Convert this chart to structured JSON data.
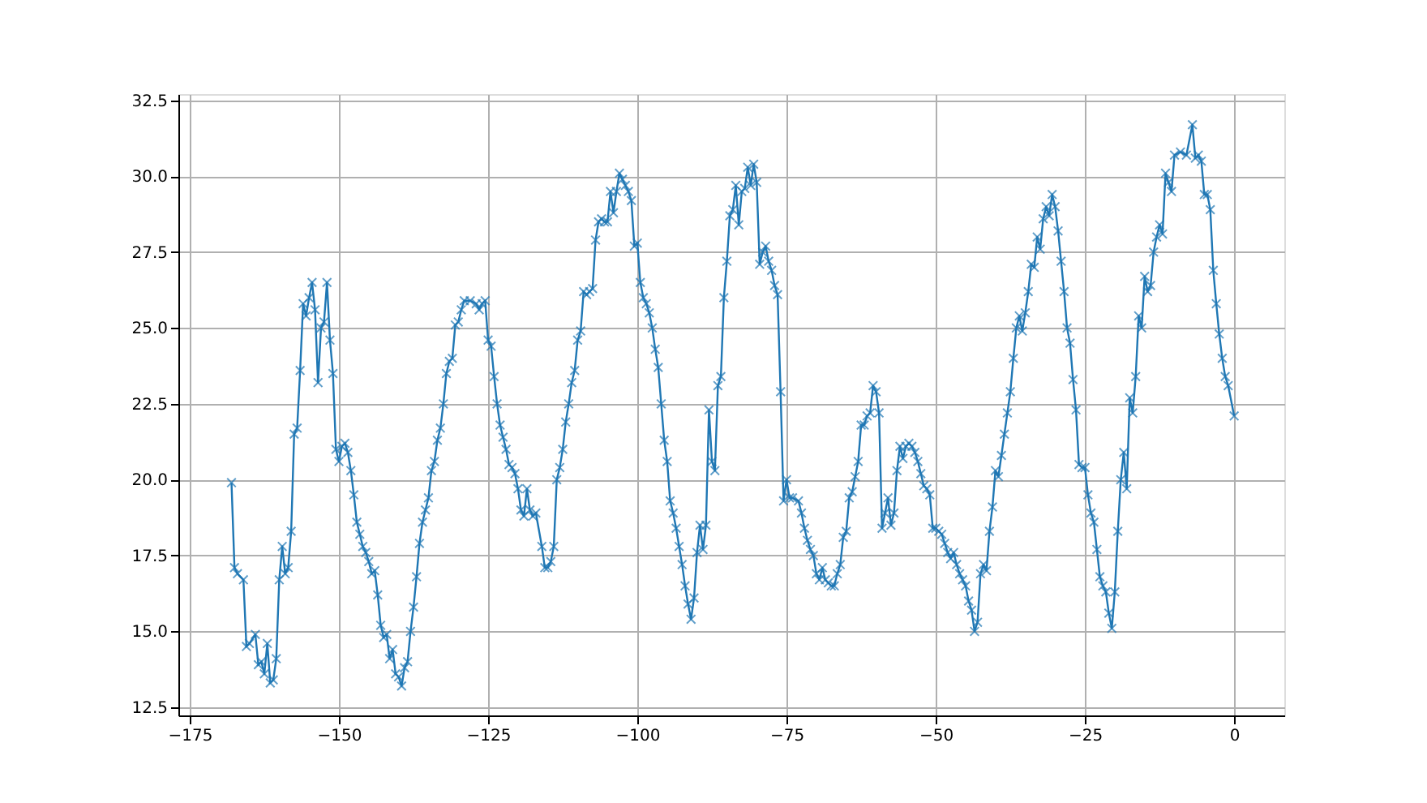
{
  "chart_data": {
    "type": "line",
    "marker": "cross",
    "line_style": "solid",
    "grid": true,
    "xlim": [
      -176.9,
      8.4
    ],
    "ylim": [
      12.23,
      32.71
    ],
    "xticks": [
      {
        "value": -175,
        "label": "−175"
      },
      {
        "value": -150,
        "label": "−150"
      },
      {
        "value": -125,
        "label": "−125"
      },
      {
        "value": -100,
        "label": "−100"
      },
      {
        "value": -75,
        "label": "−75"
      },
      {
        "value": -50,
        "label": "−50"
      },
      {
        "value": -25,
        "label": "−25"
      },
      0
    ],
    "yticks": [
      12.5,
      {
        "value": 15,
        "label": "15.0"
      },
      17.5,
      {
        "value": 20,
        "label": "20.0"
      },
      22.5,
      {
        "value": 25,
        "label": "25.0"
      },
      27.5,
      {
        "value": 30,
        "label": "30.0"
      },
      32.5
    ],
    "series": [
      {
        "color": "#1f77b4",
        "x": [
          -168,
          -167.5,
          -167,
          -166,
          -165.5,
          -165,
          -164,
          -163.5,
          -163,
          -162.5,
          -162,
          -161.5,
          -161,
          -160.5,
          -160,
          -159.5,
          -159,
          -158.5,
          -158,
          -157.5,
          -157,
          -156.5,
          -156,
          -155.5,
          -155,
          -154.5,
          -154,
          -153.5,
          -153,
          -152.5,
          -152,
          -151.5,
          -151,
          -150.5,
          -150,
          -149.5,
          -149,
          -148.5,
          -148,
          -147.5,
          -147,
          -146.5,
          -146,
          -145.5,
          -145,
          -144.5,
          -144,
          -143.5,
          -143,
          -142.5,
          -142,
          -141.5,
          -141,
          -140.5,
          -140,
          -139.5,
          -139,
          -138.5,
          -138,
          -137.5,
          -137,
          -136.5,
          -136,
          -135.5,
          -135,
          -134.5,
          -134,
          -133.5,
          -133,
          -132.5,
          -132,
          -131.5,
          -131,
          -130.5,
          -130,
          -129.5,
          -129,
          -128,
          -127,
          -126.5,
          -126,
          -125.5,
          -125,
          -124.5,
          -124,
          -123.5,
          -123,
          -122.5,
          -122,
          -121.5,
          -121,
          -120.5,
          -120,
          -119.5,
          -119,
          -118.5,
          -118,
          -117.5,
          -117,
          -116,
          -115.5,
          -115,
          -114.5,
          -114,
          -113.5,
          -113,
          -112.5,
          -112,
          -111.5,
          -111,
          -110.5,
          -110,
          -109.5,
          -109,
          -108.5,
          -108,
          -107.5,
          -107,
          -106.5,
          -106,
          -105.5,
          -105,
          -104.5,
          -104,
          -103.5,
          -103,
          -102.5,
          -102,
          -101.5,
          -101,
          -100.5,
          -100,
          -99.5,
          -99,
          -98.5,
          -98,
          -97.5,
          -97,
          -96.5,
          -96,
          -95.5,
          -95,
          -94.5,
          -94,
          -93.5,
          -93,
          -92.5,
          -92,
          -91.5,
          -91,
          -90.5,
          -90,
          -89.5,
          -89,
          -88.5,
          -88,
          -87.5,
          -87,
          -86.5,
          -86,
          -85.5,
          -85,
          -84.5,
          -84,
          -83.5,
          -83,
          -82.5,
          -82,
          -81.5,
          -81,
          -80.5,
          -80,
          -79.5,
          -79,
          -78.5,
          -78,
          -77.5,
          -77,
          -76.5,
          -76,
          -75.5,
          -75,
          -74.5,
          -74,
          -73,
          -72.5,
          -72,
          -71.5,
          -71,
          -70.5,
          -70,
          -69.5,
          -69,
          -68.5,
          -68,
          -67.5,
          -67,
          -66.5,
          -66,
          -65.5,
          -65,
          -64.5,
          -64,
          -63.5,
          -63,
          -62.5,
          -62,
          -61.5,
          -61,
          -60.5,
          -60,
          -59.5,
          -59,
          -58.5,
          -58,
          -57.5,
          -57,
          -56.5,
          -56,
          -55.5,
          -55,
          -54.5,
          -54,
          -53.5,
          -53,
          -52.5,
          -52,
          -51.5,
          -51,
          -50.5,
          -50,
          -49.5,
          -49,
          -48.5,
          -48,
          -47.5,
          -47,
          -46.5,
          -46,
          -45.5,
          -45,
          -44.5,
          -44,
          -43.5,
          -43,
          -42.5,
          -42,
          -41.5,
          -41,
          -40.5,
          -40,
          -39.5,
          -39,
          -38.5,
          -38,
          -37.5,
          -37,
          -36.5,
          -36,
          -35.5,
          -35,
          -34.5,
          -34,
          -33.5,
          -33,
          -32.5,
          -32,
          -31.5,
          -31,
          -30.5,
          -30,
          -29.5,
          -29,
          -28.5,
          -28,
          -27.5,
          -27,
          -26.5,
          -26,
          -25.5,
          -25,
          -24.5,
          -24,
          -23.5,
          -23,
          -22.5,
          -22,
          -21.5,
          -21,
          -20.5,
          -20,
          -19.5,
          -19,
          -18.5,
          -18,
          -17.5,
          -17,
          -16.5,
          -16,
          -15.5,
          -15,
          -14.5,
          -14,
          -13.5,
          -13,
          -12.5,
          -12,
          -11.5,
          -11,
          -10.5,
          -10,
          -9,
          -8,
          -7,
          -6.5,
          -6,
          -5.5,
          -5,
          -4.5,
          -4,
          -3.5,
          -3,
          -2.5,
          -2,
          -1.5,
          -1,
          0
        ],
        "values": [
          19.9,
          17.1,
          16.9,
          16.7,
          14.5,
          14.6,
          14.9,
          13.9,
          14.0,
          13.6,
          14.6,
          13.3,
          13.4,
          14.1,
          16.7,
          17.8,
          16.9,
          17.1,
          18.3,
          21.5,
          21.7,
          23.6,
          25.8,
          25.4,
          26.0,
          26.5,
          25.6,
          23.2,
          25.0,
          25.2,
          26.5,
          24.6,
          23.5,
          21.0,
          20.6,
          21.1,
          21.2,
          20.9,
          20.3,
          19.5,
          18.6,
          18.2,
          17.8,
          17.6,
          17.3,
          16.9,
          17.0,
          16.2,
          15.2,
          14.8,
          14.9,
          14.1,
          14.4,
          13.6,
          13.5,
          13.2,
          13.8,
          14.0,
          15.0,
          15.8,
          16.8,
          17.9,
          18.6,
          19.0,
          19.4,
          20.3,
          20.6,
          21.3,
          21.7,
          22.5,
          23.5,
          23.9,
          24.0,
          25.1,
          25.2,
          25.6,
          25.9,
          25.9,
          25.8,
          25.6,
          25.8,
          25.9,
          24.6,
          24.4,
          23.4,
          22.5,
          21.8,
          21.4,
          21.0,
          20.5,
          20.4,
          20.2,
          19.7,
          19.0,
          18.8,
          19.7,
          19.0,
          18.8,
          18.9,
          17.8,
          17.1,
          17.1,
          17.3,
          17.8,
          20.0,
          20.4,
          21.0,
          21.9,
          22.5,
          23.2,
          23.6,
          24.6,
          24.9,
          26.2,
          26.1,
          26.2,
          26.3,
          27.9,
          28.5,
          28.6,
          28.5,
          28.5,
          29.5,
          28.8,
          29.5,
          30.1,
          29.9,
          29.7,
          29.5,
          29.2,
          27.7,
          27.8,
          26.5,
          26.0,
          25.8,
          25.5,
          25.0,
          24.3,
          23.7,
          22.5,
          21.3,
          20.6,
          19.3,
          18.9,
          18.4,
          17.8,
          17.2,
          16.5,
          15.9,
          15.4,
          16.1,
          17.6,
          18.5,
          17.7,
          18.5,
          22.3,
          20.6,
          20.3,
          23.1,
          23.4,
          26.0,
          27.2,
          28.7,
          28.9,
          29.7,
          28.4,
          29.5,
          29.6,
          30.3,
          29.7,
          30.4,
          29.8,
          27.1,
          27.5,
          27.7,
          27.2,
          26.9,
          26.4,
          26.1,
          22.9,
          19.3,
          20.0,
          19.4,
          19.4,
          19.3,
          18.9,
          18.4,
          18.0,
          17.7,
          17.5,
          16.9,
          16.7,
          17.1,
          16.7,
          16.6,
          16.5,
          16.5,
          16.9,
          17.2,
          18.1,
          18.3,
          19.4,
          19.6,
          20.1,
          20.6,
          21.8,
          21.8,
          22.1,
          22.2,
          23.1,
          22.9,
          22.2,
          18.4,
          18.9,
          19.4,
          18.5,
          18.9,
          20.3,
          21.1,
          20.7,
          21.1,
          21.2,
          21.1,
          20.9,
          20.6,
          20.2,
          19.8,
          19.7,
          19.5,
          18.4,
          18.4,
          18.3,
          18.2,
          17.9,
          17.6,
          17.4,
          17.6,
          17.2,
          16.9,
          16.7,
          16.5,
          16.0,
          15.7,
          15.0,
          15.3,
          16.9,
          17.2,
          17.0,
          18.3,
          19.1,
          20.3,
          20.1,
          20.8,
          21.5,
          22.2,
          22.9,
          24.0,
          25.0,
          25.4,
          24.9,
          25.5,
          26.2,
          27.1,
          27.0,
          28.0,
          27.6,
          28.6,
          29.0,
          28.7,
          29.4,
          29.0,
          28.2,
          27.2,
          26.2,
          25.0,
          24.5,
          23.3,
          22.3,
          20.5,
          20.4,
          20.4,
          19.5,
          18.9,
          18.6,
          17.7,
          16.8,
          16.5,
          16.3,
          15.6,
          15.1,
          16.3,
          18.3,
          20.0,
          20.9,
          19.7,
          22.7,
          22.2,
          23.4,
          25.4,
          25.0,
          26.7,
          26.2,
          26.4,
          27.5,
          28.0,
          28.4,
          28.1,
          30.1,
          29.8,
          29.5,
          30.7,
          30.8,
          30.7,
          31.7,
          30.6,
          30.7,
          30.5,
          29.4,
          29.4,
          28.9,
          26.9,
          25.8,
          24.8,
          24.0,
          23.4,
          23.1,
          22.1
        ]
      }
    ]
  }
}
